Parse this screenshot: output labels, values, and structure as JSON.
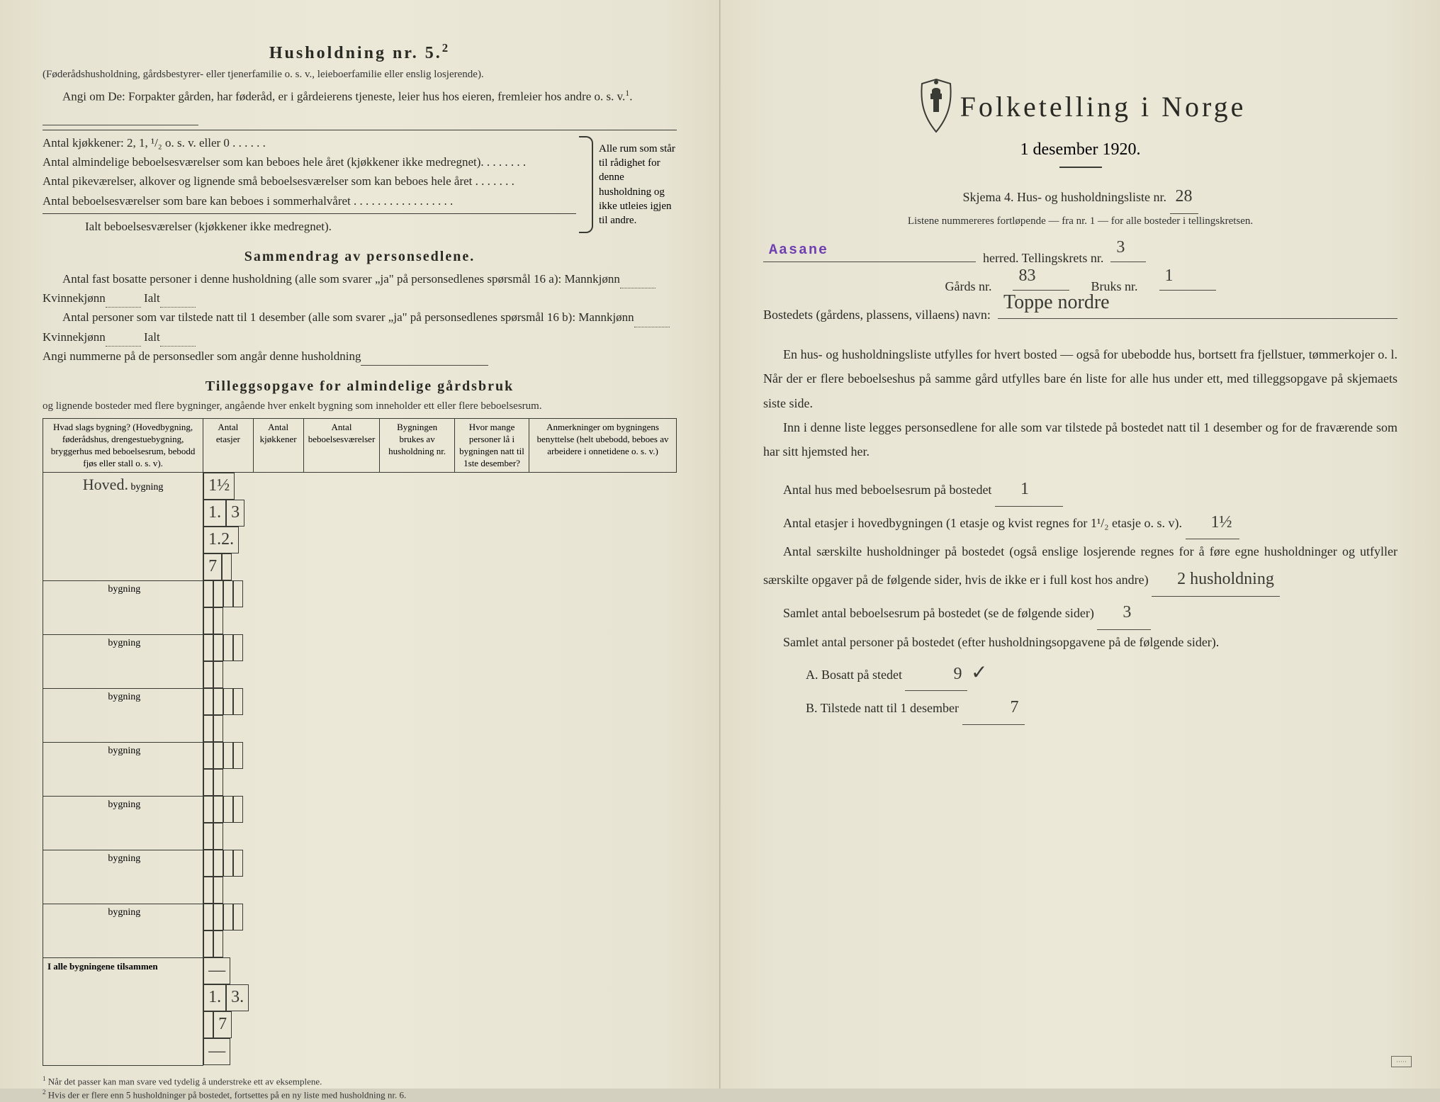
{
  "left": {
    "h5_title": "Husholdning nr. 5.",
    "h5_sup": "2",
    "h5_intro": "(Føderådshusholdning, gårdsbestyrer- eller tjenerfamilie o. s. v., leieboerfamilie eller enslig losjerende).",
    "h5_line2": "Angi om De: Forpakter gården, har føderåd, er i gårdeierens tjeneste, leier hus hos eieren, fremleier hos andre o. s. v.",
    "h5_line2_sup": "1",
    "bracket_lines": [
      "Antal kjøkkener: 2, 1, ¹/₂ o. s. v. eller 0 . . . . . .",
      "Antal almindelige beboelsesværelser som kan beboes hele året (kjøkkener ikke medregnet). . . . . . . .",
      "Antal pikeværelser, alkover og lignende små beboelsesværelser som kan beboes hele året . . . . . . .",
      "Antal beboelsesværelser som bare kan beboes i sommerhalvåret . . . . . . . . . . . . . . . . .",
      "Ialt beboelsesværelser (kjøkkener ikke medregnet)."
    ],
    "bracket_text": "Alle rum som står til rådighet for denne husholdning og ikke utleies igjen til andre.",
    "sammendrag_title": "Sammendrag av personsedlene.",
    "samm_l1a": "Antal fast bosatte personer i denne husholdning (alle som svarer „ja\" på personsedlenes spørsmål 16 a): Mannkjønn",
    "samm_l1b": "Kvinnekjønn",
    "samm_l1c": "Ialt",
    "samm_l2a": "Antal personer som var tilstede natt til 1 desember (alle som svarer „ja\" på personsedlenes spørsmål 16 b): Mannkjønn",
    "samm_l3": "Angi nummerne på de personsedler som angår denne husholdning",
    "tillegg_title": "Tilleggsopgave for almindelige gårdsbruk",
    "tillegg_sub": "og lignende bosteder med flere bygninger, angående hver enkelt bygning som inneholder ett eller flere beboelsesrum.",
    "table": {
      "columns": [
        "Hvad slags bygning?\n(Hovedbygning, føderådshus, drengestuebygning, bryggerhus med beboelsesrum, bebodd fjøs eller stall o. s. v).",
        "Antal etasjer",
        "Antal kjøkkener",
        "Antal beboelsesværelser",
        "Bygningen brukes av husholdning nr.",
        "Hvor mange personer lå i bygningen natt til 1ste desember?",
        "Anmerkninger om bygningens benyttelse (helt ubebodd, beboes av arbeidere i onnetidene o. s. v.)"
      ],
      "col_widths": [
        "26%",
        "8%",
        "8%",
        "10%",
        "12%",
        "12%",
        "24%"
      ],
      "rows": [
        {
          "label_hand": "Hoved.",
          "label": "bygning",
          "etasjer": "1½",
          "kjokk": "1.",
          "bebo": "3",
          "hush": "1.2.",
          "pers": "7",
          "anm": ""
        },
        {
          "label_hand": "",
          "label": "bygning",
          "etasjer": "",
          "kjokk": "",
          "bebo": "",
          "hush": "",
          "pers": "",
          "anm": ""
        },
        {
          "label_hand": "",
          "label": "bygning",
          "etasjer": "",
          "kjokk": "",
          "bebo": "",
          "hush": "",
          "pers": "",
          "anm": ""
        },
        {
          "label_hand": "",
          "label": "bygning",
          "etasjer": "",
          "kjokk": "",
          "bebo": "",
          "hush": "",
          "pers": "",
          "anm": ""
        },
        {
          "label_hand": "",
          "label": "bygning",
          "etasjer": "",
          "kjokk": "",
          "bebo": "",
          "hush": "",
          "pers": "",
          "anm": ""
        },
        {
          "label_hand": "",
          "label": "bygning",
          "etasjer": "",
          "kjokk": "",
          "bebo": "",
          "hush": "",
          "pers": "",
          "anm": ""
        },
        {
          "label_hand": "",
          "label": "bygning",
          "etasjer": "",
          "kjokk": "",
          "bebo": "",
          "hush": "",
          "pers": "",
          "anm": ""
        },
        {
          "label_hand": "",
          "label": "bygning",
          "etasjer": "",
          "kjokk": "",
          "bebo": "",
          "hush": "",
          "pers": "",
          "anm": ""
        }
      ],
      "total_label": "I alle bygningene tilsammen",
      "total": {
        "etasjer": "—",
        "kjokk": "1.",
        "bebo": "3.",
        "hush": "",
        "pers": "7",
        "anm": "—"
      }
    },
    "footnote1_num": "1",
    "footnote1": "Når det passer kan man svare ved tydelig å understreke ett av eksemplene.",
    "footnote2_num": "2",
    "footnote2": "Hvis der er flere enn 5 husholdninger på bostedet, fortsettes på en ny liste med husholdning nr. 6."
  },
  "right": {
    "title": "Folketelling i Norge",
    "date": "1 desember 1920.",
    "skjema": "Skjema 4.  Hus- og husholdningsliste nr.",
    "skjema_nr": "28",
    "sub": "Listene nummereres fortløpende — fra nr. 1 — for alle bosteder i tellingskretsen.",
    "herred_stamp": "Aasane",
    "herred_label": "herred.  Tellingskrets nr.",
    "krets_nr": "3",
    "gard_label": "Gårds nr.",
    "gard_nr": "83",
    "bruks_label": "Bruks nr.",
    "bruks_nr": "1",
    "bosted_label": "Bostedets (gårdens, plassens, villaens) navn:",
    "bosted_navn": "Toppe nordre",
    "para1": "En hus- og husholdningsliste utfylles for hvert bosted — også for ubebodde hus, bortsett fra fjellstuer, tømmerkojer o. l.  Når der er flere beboelseshus på samme gård utfylles bare én liste for alle hus under ett, med tilleggsopgave på skjemaets siste side.",
    "para2": "Inn i denne liste legges personsedlene for alle som var tilstede på bostedet natt til 1 desember og for de fraværende som har sitt hjemsted her.",
    "q1": "Antal hus med beboelsesrum på bostedet",
    "q1_ans": "1",
    "q2": "Antal etasjer i hovedbygningen (1 etasje og kvist regnes for 1¹/₂ etasje o. s. v).",
    "q2_ans": "1½",
    "q3": "Antal særskilte husholdninger på bostedet (også enslige losjerende regnes for å føre egne husholdninger og utfyller særskilte opgaver på de følgende sider, hvis de ikke er i full kost hos andre)",
    "q3_ans": "2 husholdning",
    "q4": "Samlet antal beboelsesrum på bostedet (se de følgende sider)",
    "q4_ans": "3",
    "q5": "Samlet antal personer på bostedet (efter husholdningsopgavene på de følgende sider).",
    "qA": "A.  Bosatt på stedet",
    "qA_ans": "9",
    "qA_check": "✓",
    "qB": "B.  Tilstede natt til 1 desember",
    "qB_ans": "7"
  },
  "colors": {
    "paper": "#e8e4d4",
    "ink": "#2a2a24",
    "hand": "#3a3a34",
    "stamp": "#7040b0"
  }
}
